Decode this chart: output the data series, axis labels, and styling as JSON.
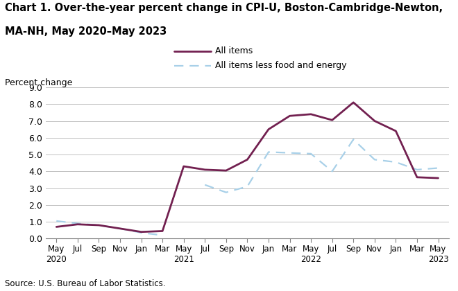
{
  "title_line1": "Chart 1. Over-the-year percent change in CPI-U, Boston-Cambridge-Newton,",
  "title_line2": "MA-NH, May 2020–May 2023",
  "ylabel": "Percent change",
  "source": "Source: U.S. Bureau of Labor Statistics.",
  "ylim": [
    0.0,
    9.0
  ],
  "yticks": [
    0.0,
    1.0,
    2.0,
    3.0,
    4.0,
    5.0,
    6.0,
    7.0,
    8.0,
    9.0
  ],
  "all_items_color": "#722050",
  "core_color": "#a8d0e8",
  "all_items_label": "All items",
  "core_label": "All items less food and energy",
  "x_labels": [
    "May\n2020",
    "Jul",
    "Sep",
    "Nov",
    "Jan",
    "Mar",
    "May\n2021",
    "Jul",
    "Sep",
    "Nov",
    "Jan",
    "Mar",
    "May\n2022",
    "Jul",
    "Sep",
    "Nov",
    "Jan",
    "Mar",
    "May\n2023"
  ],
  "all_items": [
    0.7,
    0.85,
    0.8,
    0.6,
    0.4,
    0.45,
    4.3,
    4.1,
    4.05,
    4.7,
    6.5,
    7.3,
    7.4,
    7.05,
    8.1,
    7.0,
    6.4,
    3.65,
    3.6
  ],
  "core": [
    1.05,
    0.9,
    0.8,
    0.6,
    0.35,
    0.2,
    null,
    3.2,
    2.75,
    3.1,
    5.15,
    5.1,
    5.05,
    4.0,
    5.9,
    4.7,
    4.55,
    4.1,
    4.2
  ],
  "background_color": "#ffffff",
  "grid_color": "#c0c0c0"
}
